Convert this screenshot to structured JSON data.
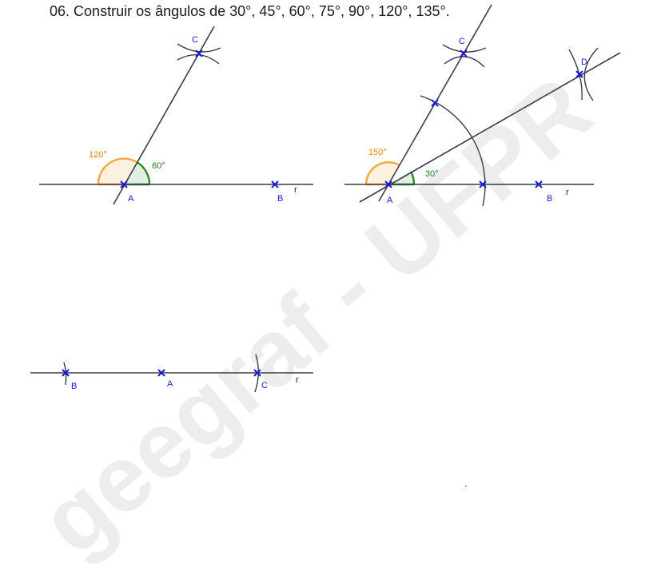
{
  "exercise": {
    "number": "06.",
    "text": "Construir os ângulos de 30°, 45°, 60°, 75°, 90°, 120°, 135°."
  },
  "watermark": "geegraf - UFPR",
  "figure1": {
    "points": {
      "A": "A",
      "B": "B",
      "C": "C"
    },
    "line_label": "r",
    "angle_left": "120°",
    "angle_right": "60°"
  },
  "figure2": {
    "points": {
      "A": "A",
      "B": "B",
      "C": "C",
      "D": "D"
    },
    "line_label": "r",
    "angle_left": "150°",
    "angle_right": "30°"
  },
  "figure3": {
    "points": {
      "A": "A",
      "B": "B",
      "C": "C"
    },
    "line_label": "r"
  },
  "colors": {
    "point": "#1a1ad6",
    "angle_obtuse": "#f08a00",
    "angle_acute": "#1e7a1e",
    "line": "#3a3a4a"
  }
}
